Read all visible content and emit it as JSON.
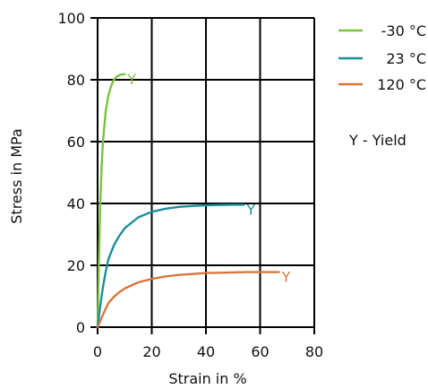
{
  "chart_data": {
    "type": "line",
    "xlabel": "Strain in %",
    "ylabel": "Stress in MPa",
    "xlim": [
      0,
      80
    ],
    "ylim": [
      0,
      100
    ],
    "xticks": [
      0,
      20,
      40,
      60,
      80
    ],
    "yticks": [
      0,
      20,
      40,
      60,
      80,
      100
    ],
    "grid": true,
    "legend_position": "top-right",
    "yield_note": "Y - Yield",
    "series": [
      {
        "name": "-30 °C",
        "color": "#7dc142",
        "yield_label": "Y",
        "x": [
          0,
          0.5,
          1,
          1.5,
          2,
          3,
          4,
          5,
          6,
          7,
          8,
          9,
          10
        ],
        "y": [
          0,
          22,
          40,
          52,
          60,
          70,
          75,
          78,
          80,
          81,
          81.5,
          81.7,
          81.8
        ]
      },
      {
        "name": "23 °C",
        "color": "#1b8f9b",
        "yield_label": "Y",
        "x": [
          0,
          1,
          2,
          3,
          4,
          6,
          8,
          10,
          15,
          20,
          25,
          30,
          35,
          40,
          45,
          50,
          54
        ],
        "y": [
          0,
          7,
          13,
          18,
          22,
          26.5,
          29.5,
          32,
          35.5,
          37.3,
          38.3,
          38.9,
          39.2,
          39.4,
          39.5,
          39.6,
          39.6
        ]
      },
      {
        "name": "120 °C",
        "color": "#d9773a",
        "yield_label": "Y",
        "x": [
          0,
          1,
          2,
          3,
          4,
          6,
          8,
          10,
          15,
          20,
          25,
          30,
          35,
          40,
          45,
          50,
          55,
          60,
          67
        ],
        "y": [
          0,
          2,
          4,
          6,
          7.8,
          9.8,
          11.3,
          12.5,
          14.5,
          15.6,
          16.4,
          16.9,
          17.2,
          17.5,
          17.6,
          17.7,
          17.8,
          17.8,
          17.8
        ]
      }
    ]
  }
}
